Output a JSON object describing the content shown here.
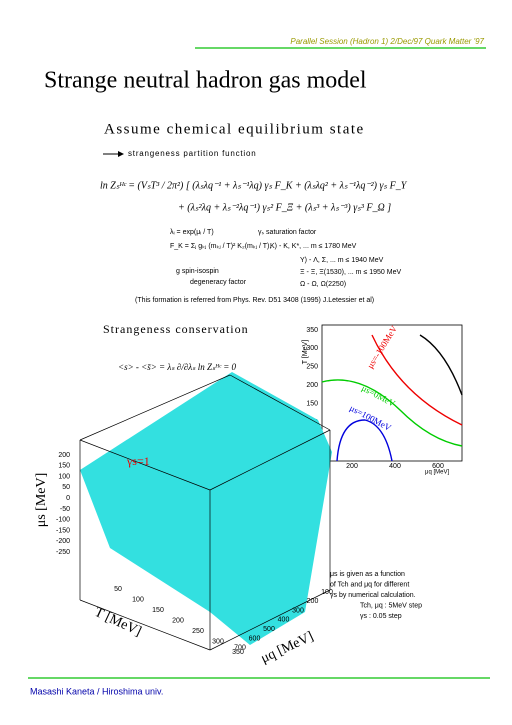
{
  "header": "Parallel Session (Hadron 1) 2/Dec/97 Quark Matter '97",
  "title": "Strange neutral hadron gas model",
  "section1": {
    "heading": "Assume chemical equilibrium state",
    "arrow_text": "strangeness partition function",
    "equation_lines": [
      "ln Zₛᴴᶜ = (VₛT³ / 2π²) [ (λₛλq⁻¹ + λₛ⁻¹λq) γₛ F_K + (λₛλq² + λₛ⁻¹λq⁻²) γₛ F_Y",
      "+ (λₛ²λq + λₛ⁻²λq⁻¹) γₛ² F_Ξ + (λₛ³ + λₛ⁻³) γₛ³ F_Ω ]"
    ],
    "definitions": [
      "λᵢ = exp(μᵢ / T)",
      "γₛ  saturation factor",
      "F_K = Σⱼ gₖⱼ (mₖⱼ / T)² K₂(mₖⱼ / T),",
      "K) - K, K*, ... m ≤ 1780 MeV",
      "Y) - Λ, Σ, ... m ≤ 1940 MeV",
      "Ξ - Ξ, Ξ(1530), ... m ≤ 1950 MeV",
      "Ω - Ω, Ω(2250)",
      "g   spin-isospin",
      "degeneracy factor"
    ],
    "citation": "(This formation is referred from Phys. Rev. D51 3408 (1995) J.Letessier et al)"
  },
  "section2": {
    "heading": "Strangeness conservation",
    "equation": "<s> - <s̄> = λₛ ∂/∂λₛ ln Zₛᴴᶜ = 0"
  },
  "contour_plot": {
    "y_label": "T [MeV]",
    "x_label": "μq [MeV]",
    "yticks": [
      "350",
      "300",
      "250",
      "200",
      "150",
      "100",
      "50"
    ],
    "xticks": [
      "200",
      "400",
      "600"
    ],
    "curve_labels": [
      "μs=-100MeV",
      "μs=0MeV",
      "μs=100MeV"
    ]
  },
  "surface_plot": {
    "z_label": "μs [MeV]",
    "zticks": [
      "200",
      "150",
      "100",
      "50",
      "0",
      "-50",
      "-100",
      "-150",
      "-200",
      "-250"
    ],
    "annotation": "γs=1",
    "t_label": "T [MeV]",
    "tticks": [
      "50",
      "100",
      "150",
      "200",
      "250",
      "300",
      "350"
    ],
    "q_label": "μq [MeV]",
    "qticks": [
      "100",
      "200",
      "300",
      "400",
      "500",
      "600",
      "700"
    ]
  },
  "note": [
    "μs is given as a function",
    "of Tch and μq for different",
    "γs by numerical calculation.",
    "Tch, μq : 5MeV step",
    "γs : 0.05 step"
  ],
  "footer": "Masashi Kaneta / Hiroshima univ."
}
